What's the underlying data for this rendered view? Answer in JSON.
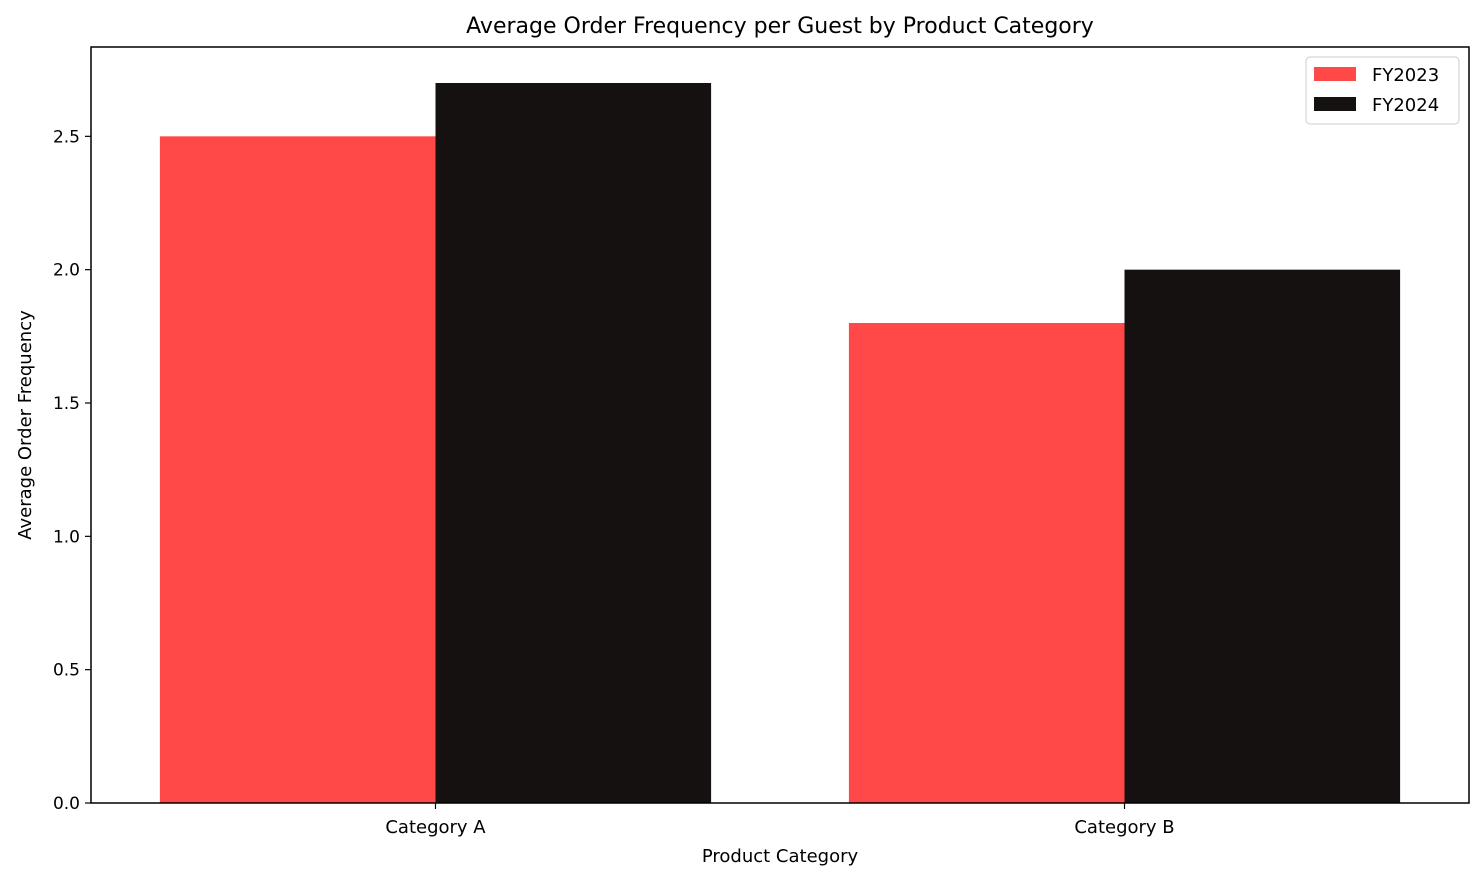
{
  "chart_data": {
    "type": "bar",
    "title": "Average Order Frequency per Guest by Product Category",
    "xlabel": "Product Category",
    "ylabel": "Average Order Frequency",
    "categories": [
      "Category A",
      "Category B"
    ],
    "series": [
      {
        "name": "FY2023",
        "values": [
          2.5,
          1.8
        ],
        "color": "#ff4848"
      },
      {
        "name": "FY2024",
        "values": [
          2.7,
          2.0
        ],
        "color": "#141110"
      }
    ],
    "ylim": [
      0,
      2.835
    ],
    "yticks": [
      0.0,
      0.5,
      1.0,
      1.5,
      2.0,
      2.5
    ],
    "ytick_labels": [
      "0.0",
      "0.5",
      "1.0",
      "1.5",
      "2.0",
      "2.5"
    ],
    "grid": false,
    "legend_position": "top-right"
  }
}
